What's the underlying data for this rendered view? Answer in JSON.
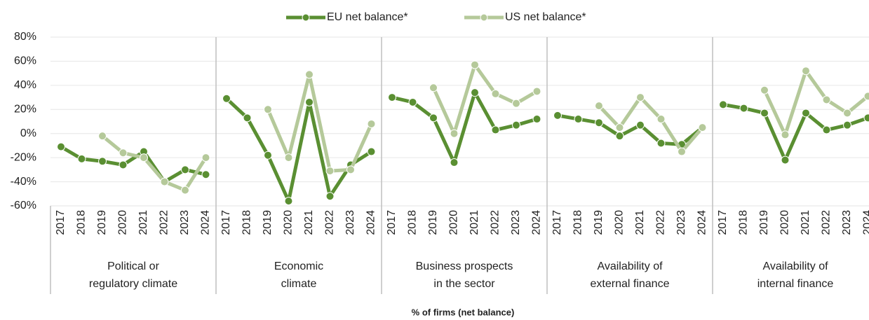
{
  "chart_data": {
    "type": "line",
    "categories": [
      [
        "2017",
        "2018",
        "2019",
        "2020",
        "2021",
        "2022",
        "2023",
        "2024"
      ],
      [
        "2017",
        "2018",
        "2019",
        "2020",
        "2021",
        "2022",
        "2023",
        "2024"
      ],
      [
        "2017",
        "2018",
        "2019",
        "2020",
        "2021",
        "2022",
        "2023",
        "2024"
      ],
      [
        "2017",
        "2018",
        "2019",
        "2020",
        "2021",
        "2022",
        "2023",
        "2024"
      ],
      [
        "2017",
        "2018",
        "2019",
        "2020",
        "2021",
        "2022",
        "2023",
        "2024"
      ]
    ],
    "group_labels": [
      [
        "Political or",
        "regulatory climate"
      ],
      [
        "Economic",
        "climate"
      ],
      [
        "Business prospects",
        "in the sector"
      ],
      [
        "Availability of",
        "external finance"
      ],
      [
        "Availability of",
        "internal finance"
      ]
    ],
    "series": [
      {
        "name": "EU net balance*",
        "color": "#5a8f32",
        "values": [
          [
            -11,
            -21,
            -23,
            -26,
            -15,
            -40,
            -30,
            -34
          ],
          [
            29,
            13,
            -18,
            -56,
            26,
            -52,
            -26,
            -15
          ],
          [
            30,
            26,
            13,
            -24,
            34,
            3,
            7,
            12
          ],
          [
            15,
            12,
            9,
            -2,
            7,
            -8,
            -9,
            5
          ],
          [
            24,
            21,
            17,
            -22,
            17,
            3,
            7,
            13
          ]
        ]
      },
      {
        "name": "US net balance*",
        "color": "#b5c99a",
        "values": [
          [
            null,
            null,
            -2,
            -16,
            -20,
            -40,
            -47,
            -20
          ],
          [
            null,
            null,
            20,
            -20,
            49,
            -31,
            -30,
            8
          ],
          [
            null,
            null,
            38,
            0,
            57,
            33,
            25,
            35
          ],
          [
            null,
            null,
            23,
            5,
            30,
            12,
            -15,
            5
          ],
          [
            null,
            null,
            36,
            -1,
            52,
            28,
            17,
            31
          ]
        ]
      }
    ],
    "ylim": [
      -60,
      80
    ],
    "yticks": [
      {
        "value": -60,
        "label": "-60%"
      },
      {
        "value": -40,
        "label": "-40%"
      },
      {
        "value": -20,
        "label": "-20%"
      },
      {
        "value": 0,
        "label": "0%"
      },
      {
        "value": 20,
        "label": "20%"
      },
      {
        "value": 40,
        "label": "40%"
      },
      {
        "value": 60,
        "label": "60%"
      },
      {
        "value": 80,
        "label": "80%"
      }
    ],
    "grid": true,
    "legend": "top",
    "x_label": "% of firms (net balance)"
  }
}
